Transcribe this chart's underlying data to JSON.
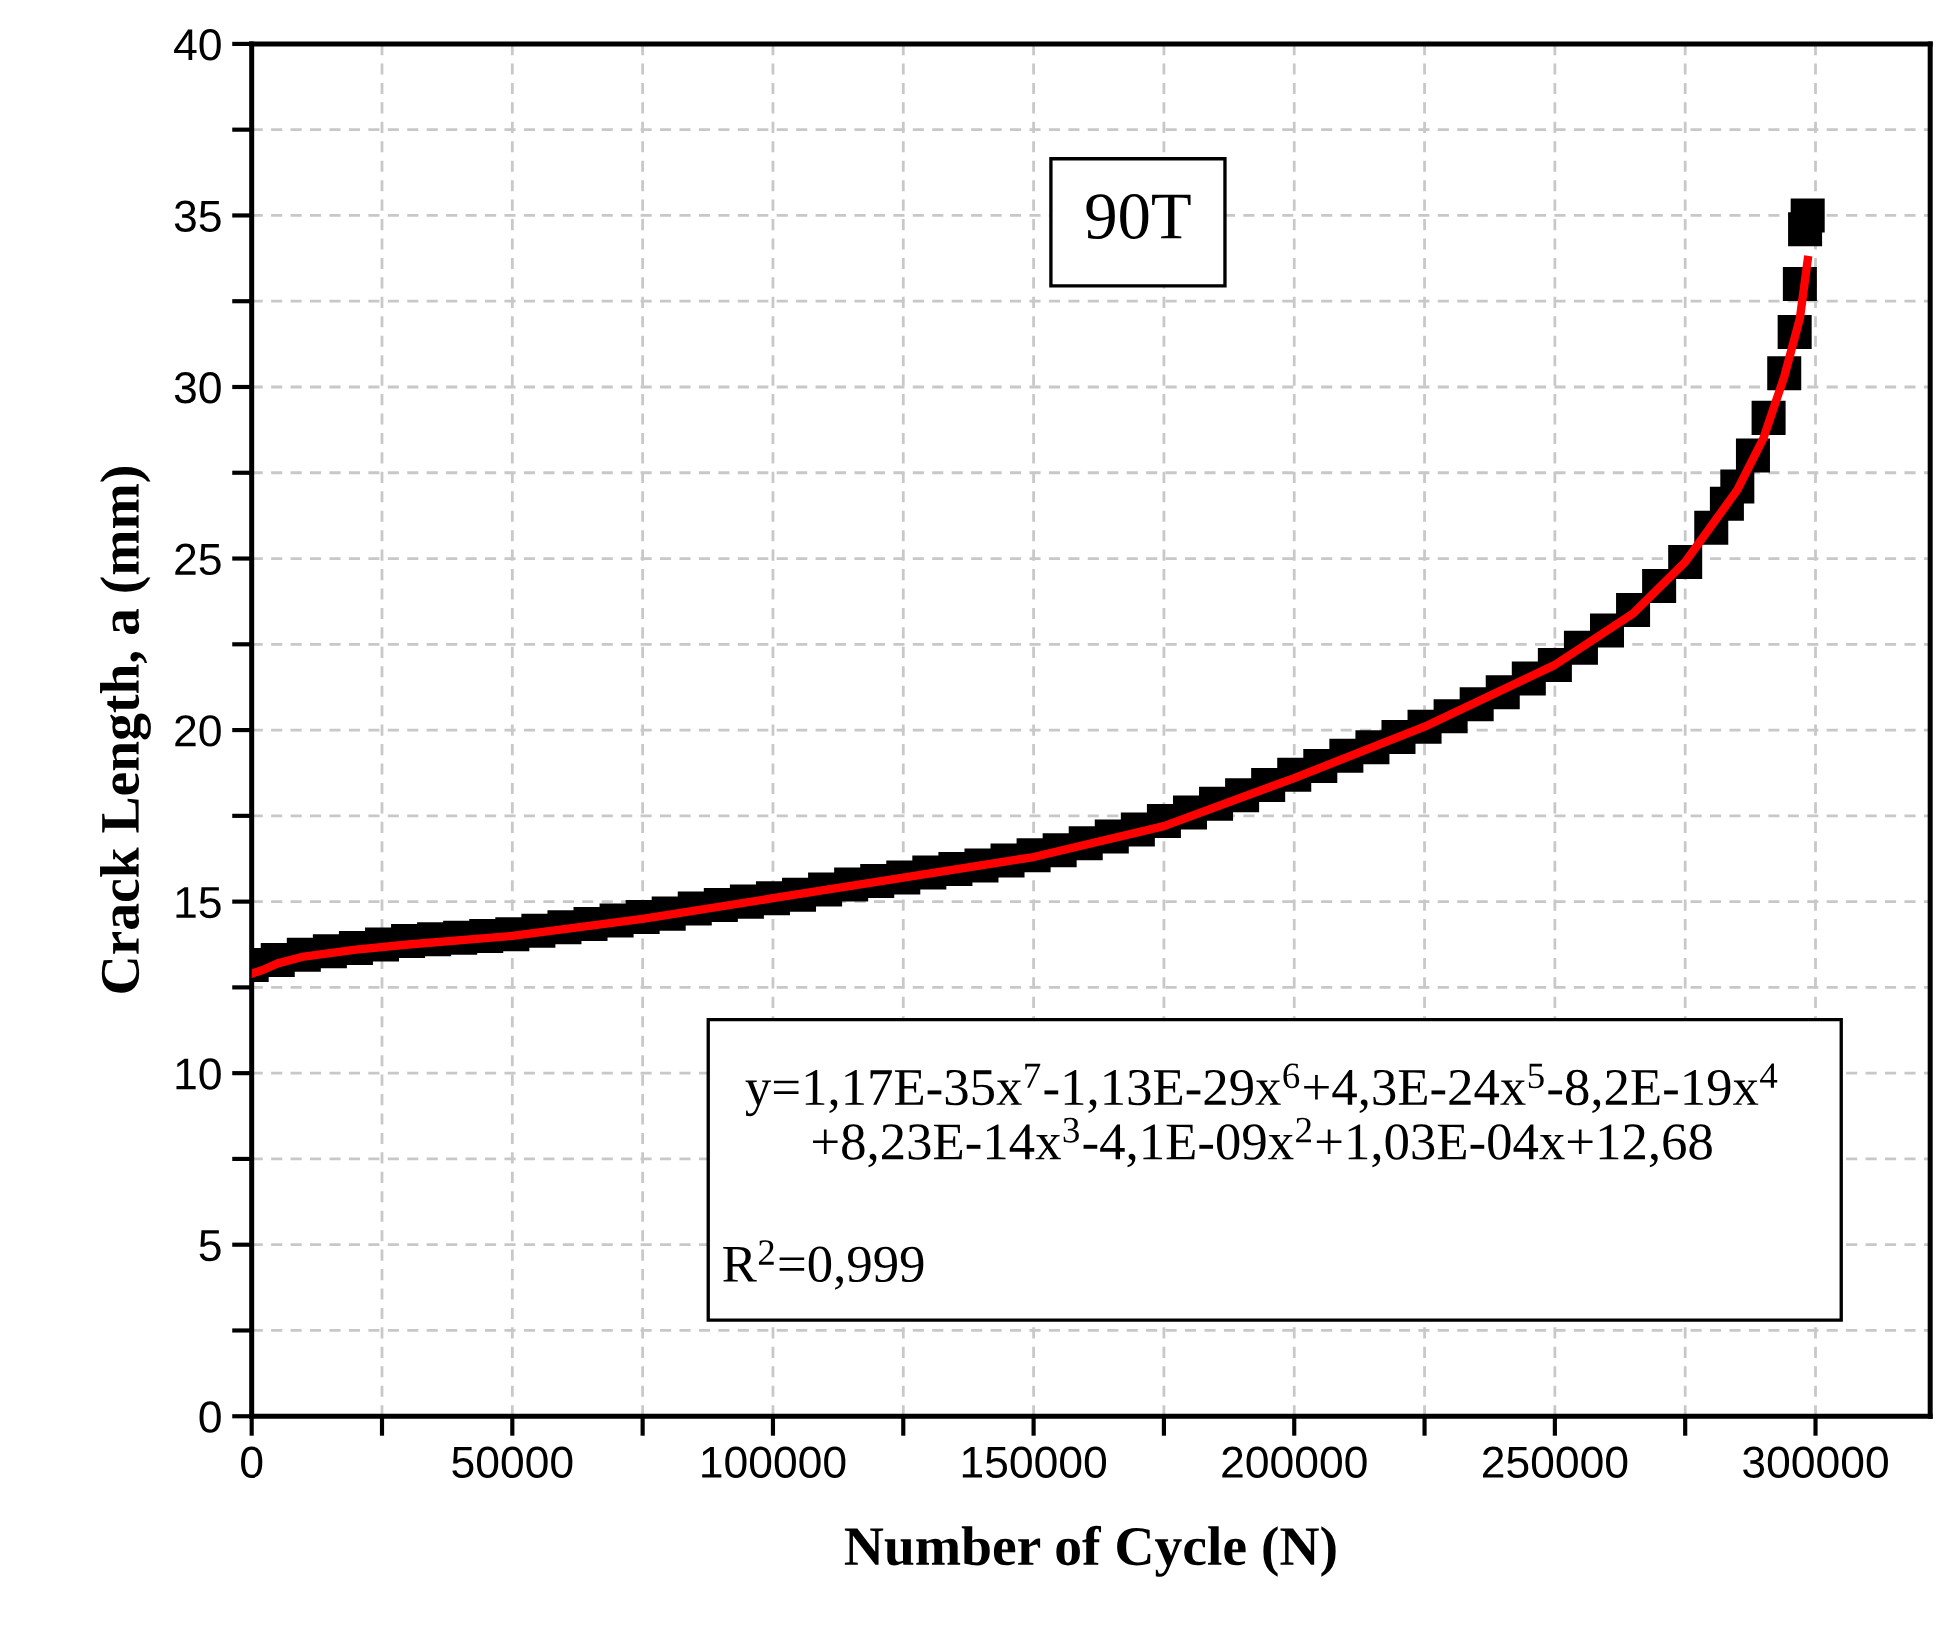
{
  "chart_data": {
    "type": "scatter",
    "xlabel": "Number of Cycle (N)",
    "ylabel": "Crack Length, a (mm)",
    "xlim": [
      0,
      322000
    ],
    "ylim": [
      0,
      40
    ],
    "xticks": [
      0,
      {
        "value": 25000,
        "label": null
      },
      50000,
      {
        "value": 75000,
        "label": null
      },
      100000,
      {
        "value": 125000,
        "label": null
      },
      150000,
      {
        "value": 175000,
        "label": null
      },
      200000,
      {
        "value": 225000,
        "label": null
      },
      250000,
      {
        "value": 275000,
        "label": null
      },
      300000
    ],
    "yticks": [
      0,
      {
        "value": 2.5,
        "label": null
      },
      5,
      {
        "value": 7.5,
        "label": null
      },
      10,
      {
        "value": 12.5,
        "label": null
      },
      15,
      {
        "value": 17.5,
        "label": null
      },
      20,
      {
        "value": 22.5,
        "label": null
      },
      25,
      {
        "value": 27.5,
        "label": null
      },
      30,
      {
        "value": 32.5,
        "label": null
      },
      35,
      {
        "value": 37.5,
        "label": null
      },
      40
    ],
    "grid": true,
    "marker": "square",
    "series": [
      {
        "color": "#000000",
        "x": [
          0,
          5000,
          10000,
          15000,
          20000,
          25000,
          30000,
          35000,
          40000,
          45000,
          50000,
          55000,
          60000,
          65000,
          70000,
          75000,
          80000,
          85000,
          90000,
          95000,
          100000,
          105000,
          110000,
          115000,
          120000,
          125000,
          130000,
          135000,
          140000,
          145000,
          150000,
          155000,
          160000,
          165000,
          170000,
          175000,
          180000,
          185000,
          190000,
          195000,
          200000,
          205000,
          210000,
          215000,
          220000,
          225000,
          230000,
          235000,
          240000,
          245000,
          250000,
          255000,
          260000,
          265000,
          270000,
          275000,
          280000,
          283000,
          285000,
          288000,
          291000,
          294000,
          296000,
          297000,
          298000,
          298500
        ],
        "values": [
          13.15,
          13.3,
          13.45,
          13.55,
          13.65,
          13.75,
          13.85,
          13.9,
          13.95,
          14.0,
          14.05,
          14.15,
          14.25,
          14.35,
          14.45,
          14.55,
          14.65,
          14.8,
          14.9,
          15.0,
          15.1,
          15.2,
          15.35,
          15.5,
          15.6,
          15.7,
          15.85,
          15.95,
          16.05,
          16.2,
          16.35,
          16.5,
          16.7,
          16.9,
          17.1,
          17.35,
          17.6,
          17.85,
          18.1,
          18.4,
          18.7,
          18.95,
          19.25,
          19.5,
          19.8,
          20.1,
          20.4,
          20.75,
          21.1,
          21.5,
          21.9,
          22.4,
          22.9,
          23.5,
          24.2,
          24.9,
          25.9,
          26.6,
          27.1,
          28.0,
          29.1,
          30.4,
          31.6,
          33.0,
          34.6,
          35.0
        ]
      },
      {
        "type": "line",
        "color": "#ff0000",
        "marker": "none",
        "x": [
          0,
          2000,
          5000,
          10000,
          20000,
          30000,
          50000,
          75000,
          100000,
          125000,
          150000,
          175000,
          200000,
          225000,
          250000,
          265000,
          275000,
          285000,
          290000,
          294000,
          297000,
          298500
        ],
        "values": [
          12.9,
          13.0,
          13.2,
          13.4,
          13.6,
          13.75,
          14.0,
          14.5,
          15.1,
          15.7,
          16.3,
          17.2,
          18.6,
          20.1,
          21.9,
          23.4,
          24.9,
          27.0,
          28.5,
          30.3,
          32.0,
          33.7
        ]
      }
    ],
    "annotations": [
      "90T",
      "y=1,17E-35x$^{7}$-1,13E-29x$^{6}$+4,3E-24x$^{5}$-8,2E-19x$^{4}$\n+8,23E-14x$^{3}$-4,1E-09x$^{2}$+1,03E-04x+12,68",
      "R$^{2}$=0,999"
    ]
  }
}
